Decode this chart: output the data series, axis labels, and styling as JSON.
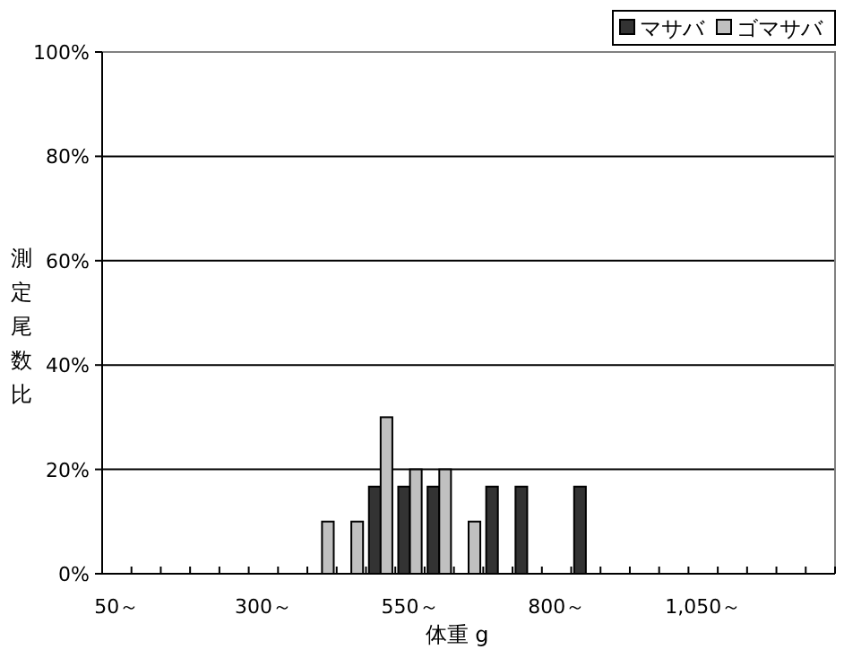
{
  "chart_data": {
    "type": "bar",
    "xlabel": "体重 g",
    "ylabel": "測定尾数比",
    "categories": [
      "50～",
      null,
      null,
      null,
      null,
      "300～",
      null,
      null,
      null,
      null,
      "550～",
      null,
      null,
      null,
      null,
      "800～",
      null,
      null,
      null,
      null,
      "1,050～",
      null,
      null,
      null,
      null
    ],
    "series": [
      {
        "name": "マサバ",
        "color": "#333333",
        "values": [
          0,
          0,
          0,
          0,
          0,
          0,
          0,
          0,
          0,
          16.7,
          16.7,
          16.7,
          0,
          16.7,
          16.7,
          0,
          16.7,
          0,
          0,
          0,
          0,
          0,
          0,
          0,
          0
        ]
      },
      {
        "name": "ゴマサバ",
        "color": "#c0c0c0",
        "values": [
          0,
          0,
          0,
          0,
          0,
          0,
          0,
          10,
          10,
          30,
          20,
          20,
          10,
          0,
          0,
          0,
          0,
          0,
          0,
          0,
          0,
          0,
          0,
          0,
          0
        ]
      }
    ],
    "ylim": [
      0,
      100
    ],
    "yticks": [
      {
        "value": 0,
        "label": "0%"
      },
      {
        "value": 20,
        "label": "20%"
      },
      {
        "value": 40,
        "label": "40%"
      },
      {
        "value": 60,
        "label": "60%"
      },
      {
        "value": 80,
        "label": "80%"
      },
      {
        "value": 100,
        "label": "100%"
      }
    ],
    "grid": "y",
    "legend": "top right"
  }
}
